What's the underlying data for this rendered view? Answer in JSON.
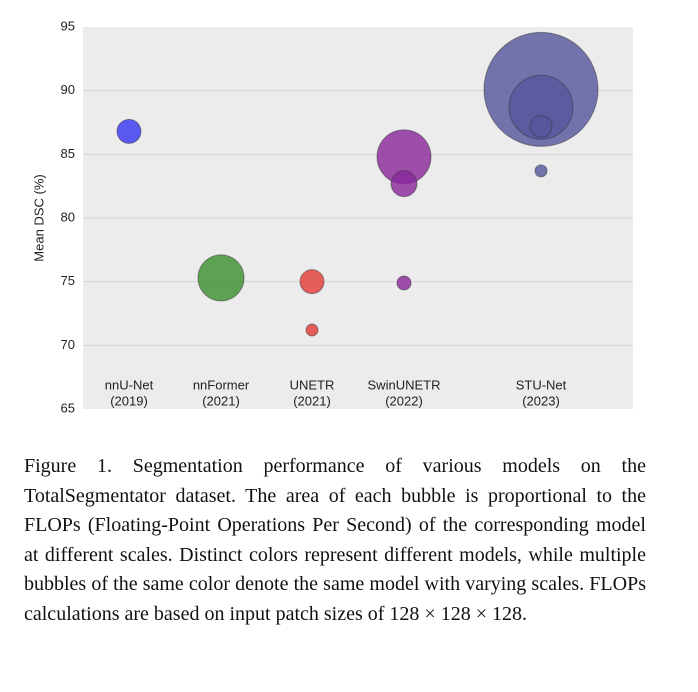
{
  "chart_data": {
    "type": "bubble",
    "y_label": "Mean DSC (%)",
    "categories": [
      [
        "nnU-Net",
        "(2019)"
      ],
      [
        "nnFormer",
        "(2021)"
      ],
      [
        "UNETR",
        "(2021)"
      ],
      [
        "SwinUNETR",
        "(2022)"
      ],
      [
        "STU-Net",
        "(2023)"
      ]
    ],
    "series": [
      {
        "name": "nnU-Net",
        "color": "#3434f2",
        "values": [
          86.8
        ],
        "sizes": [
          144
        ]
      },
      {
        "name": "nnFormer",
        "color": "#3a8f2c",
        "values": [
          75.3
        ],
        "sizes": [
          529
        ]
      },
      {
        "name": "UNETR",
        "color": "#e23b35",
        "values": [
          75.0,
          71.2
        ],
        "sizes": [
          144,
          36
        ]
      },
      {
        "name": "SwinUNETR",
        "color": "#88279a",
        "values": [
          84.8,
          82.7,
          74.9
        ],
        "sizes": [
          729,
          169,
          49
        ]
      },
      {
        "name": "STU-Net",
        "color": "#55559c",
        "values": [
          90.1,
          88.7,
          87.2,
          83.7
        ],
        "sizes": [
          3249,
          1024,
          121,
          36
        ]
      }
    ],
    "ylim": [
      65,
      95
    ],
    "yticks": [
      65,
      70,
      75,
      80,
      85,
      90,
      95
    ],
    "grid": true
  },
  "caption": "Figure 1. Segmentation performance of various models on the TotalSegmentator dataset. The area of each bubble is proportional to the FLOPs (Floating-Point Operations Per Second) of the corresponding model at different scales. Distinct colors represent different models, while multiple bubbles of the same color denote the same model with varying scales. FLOPs calculations are based on input patch sizes of 128 × 128 × 128."
}
